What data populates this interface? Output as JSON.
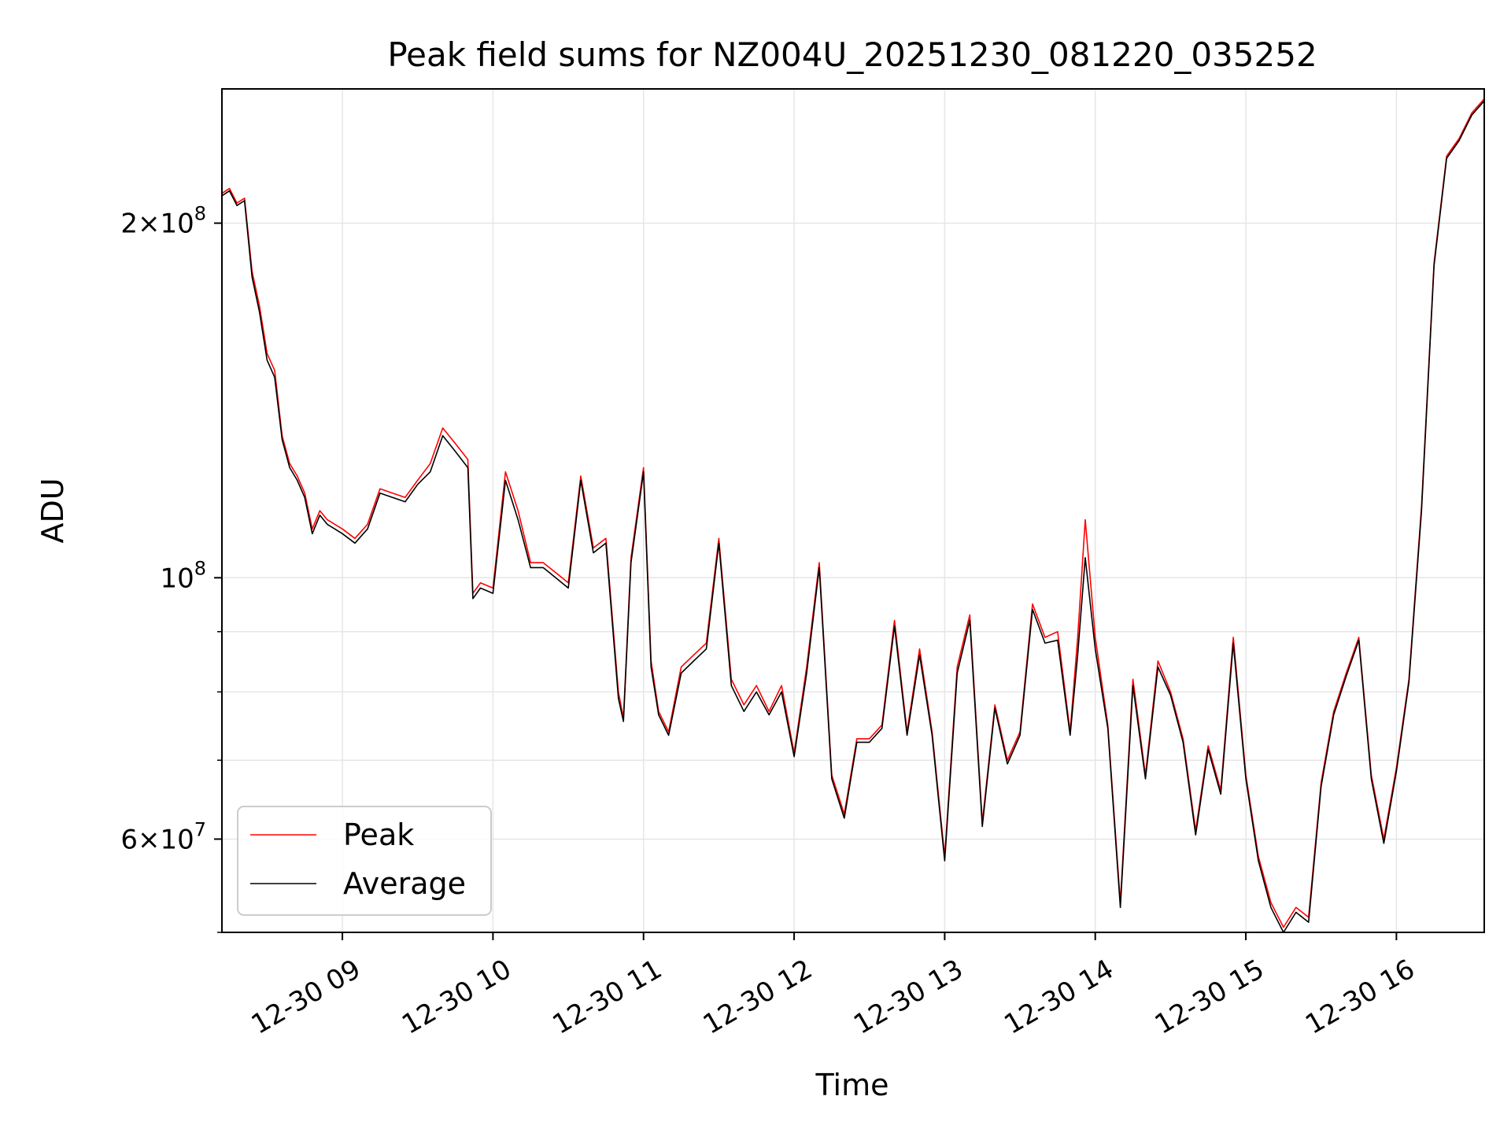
{
  "chart_data": {
    "type": "line",
    "title": "Peak field sums for NZ004U_20251230_081220_035252",
    "xlabel": "Time",
    "ylabel": "ADU",
    "yscale": "log",
    "grid": true,
    "legend_position": "lower-left",
    "xlim": [
      "2025-12-30 08:12",
      "2025-12-30 16:35"
    ],
    "ylim": [
      50000000,
      260000000
    ],
    "x_ticks": [
      {
        "value": "2025-12-30 09:00",
        "label": "12-30 09"
      },
      {
        "value": "2025-12-30 10:00",
        "label": "12-30 10"
      },
      {
        "value": "2025-12-30 11:00",
        "label": "12-30 11"
      },
      {
        "value": "2025-12-30 12:00",
        "label": "12-30 12"
      },
      {
        "value": "2025-12-30 13:00",
        "label": "12-30 13"
      },
      {
        "value": "2025-12-30 14:00",
        "label": "12-30 14"
      },
      {
        "value": "2025-12-30 15:00",
        "label": "12-30 15"
      },
      {
        "value": "2025-12-30 16:00",
        "label": "12-30 16"
      }
    ],
    "y_major_ticks": [
      {
        "value": 60000000,
        "mantissa": "6",
        "exponent": "7"
      },
      {
        "value": 100000000,
        "mantissa": "",
        "exponent": "8"
      },
      {
        "value": 200000000,
        "mantissa": "2",
        "exponent": "8"
      }
    ],
    "y_minor_ticks": [
      50000000,
      70000000,
      80000000,
      90000000
    ],
    "series": [
      {
        "name": "Peak",
        "color": "#ff0000",
        "x": [
          "08:12",
          "08:15",
          "08:18",
          "08:21",
          "08:24",
          "08:27",
          "08:30",
          "08:33",
          "08:36",
          "08:39",
          "08:42",
          "08:45",
          "08:48",
          "08:51",
          "08:54",
          "08:57",
          "09:00",
          "09:05",
          "09:10",
          "09:15",
          "09:20",
          "09:25",
          "09:30",
          "09:35",
          "09:40",
          "09:45",
          "09:50",
          "09:52",
          "09:55",
          "10:00",
          "10:05",
          "10:10",
          "10:15",
          "10:20",
          "10:25",
          "10:30",
          "10:35",
          "10:40",
          "10:45",
          "10:50",
          "10:52",
          "10:55",
          "11:00",
          "11:03",
          "11:06",
          "11:10",
          "11:15",
          "11:20",
          "11:25",
          "11:30",
          "11:35",
          "11:40",
          "11:45",
          "11:50",
          "11:55",
          "12:00",
          "12:05",
          "12:10",
          "12:15",
          "12:20",
          "12:25",
          "12:30",
          "12:35",
          "12:40",
          "12:45",
          "12:50",
          "12:55",
          "13:00",
          "13:05",
          "13:10",
          "13:15",
          "13:20",
          "13:25",
          "13:30",
          "13:35",
          "13:40",
          "13:45",
          "13:50",
          "13:53",
          "13:56",
          "14:00",
          "14:05",
          "14:10",
          "14:15",
          "14:20",
          "14:25",
          "14:30",
          "14:35",
          "14:40",
          "14:45",
          "14:50",
          "14:55",
          "15:00",
          "15:05",
          "15:10",
          "15:15",
          "15:20",
          "15:25",
          "15:30",
          "15:35",
          "15:40",
          "15:45",
          "15:50",
          "15:55",
          "16:00",
          "16:05",
          "16:10",
          "16:15",
          "16:20",
          "16:25",
          "16:30",
          "16:35"
        ],
        "values": [
          212000000,
          214000000,
          208000000,
          210000000,
          182000000,
          170000000,
          155000000,
          150000000,
          132000000,
          125000000,
          122000000,
          118000000,
          110000000,
          114000000,
          112000000,
          111000000,
          110000000,
          108000000,
          111000000,
          119000000,
          118000000,
          117000000,
          121000000,
          125000000,
          134000000,
          130000000,
          126000000,
          97000000,
          99000000,
          98000000,
          123000000,
          114000000,
          103000000,
          103000000,
          101000000,
          99000000,
          122000000,
          106000000,
          108000000,
          80000000,
          76000000,
          104000000,
          124000000,
          85000000,
          77000000,
          74000000,
          84000000,
          86000000,
          88000000,
          108000000,
          82000000,
          78000000,
          81000000,
          77000000,
          81000000,
          71000000,
          84000000,
          103000000,
          68000000,
          63000000,
          73000000,
          73000000,
          75000000,
          92000000,
          74000000,
          87000000,
          74000000,
          58000000,
          84000000,
          93000000,
          62000000,
          78000000,
          70000000,
          74000000,
          95000000,
          89000000,
          90000000,
          74000000,
          89000000,
          112000000,
          89000000,
          75000000,
          53000000,
          82000000,
          68000000,
          85000000,
          80000000,
          73000000,
          61000000,
          72000000,
          66000000,
          89000000,
          68000000,
          58000000,
          53000000,
          50500000,
          52500000,
          51500000,
          67000000,
          77000000,
          83000000,
          89000000,
          68000000,
          60000000,
          69000000,
          82000000,
          115000000,
          185000000,
          228000000,
          236000000,
          248000000,
          255000000
        ]
      },
      {
        "name": "Average",
        "color": "#000000",
        "x": [
          "08:12",
          "08:15",
          "08:18",
          "08:21",
          "08:24",
          "08:27",
          "08:30",
          "08:33",
          "08:36",
          "08:39",
          "08:42",
          "08:45",
          "08:48",
          "08:51",
          "08:54",
          "08:57",
          "09:00",
          "09:05",
          "09:10",
          "09:15",
          "09:20",
          "09:25",
          "09:30",
          "09:35",
          "09:40",
          "09:45",
          "09:50",
          "09:52",
          "09:55",
          "10:00",
          "10:05",
          "10:10",
          "10:15",
          "10:20",
          "10:25",
          "10:30",
          "10:35",
          "10:40",
          "10:45",
          "10:50",
          "10:52",
          "10:55",
          "11:00",
          "11:03",
          "11:06",
          "11:10",
          "11:15",
          "11:20",
          "11:25",
          "11:30",
          "11:35",
          "11:40",
          "11:45",
          "11:50",
          "11:55",
          "12:00",
          "12:05",
          "12:10",
          "12:15",
          "12:20",
          "12:25",
          "12:30",
          "12:35",
          "12:40",
          "12:45",
          "12:50",
          "12:55",
          "13:00",
          "13:05",
          "13:10",
          "13:15",
          "13:20",
          "13:25",
          "13:30",
          "13:35",
          "13:40",
          "13:45",
          "13:50",
          "13:53",
          "13:56",
          "14:00",
          "14:05",
          "14:10",
          "14:15",
          "14:20",
          "14:25",
          "14:30",
          "14:35",
          "14:40",
          "14:45",
          "14:50",
          "14:55",
          "15:00",
          "15:05",
          "15:10",
          "15:15",
          "15:20",
          "15:25",
          "15:30",
          "15:35",
          "15:40",
          "15:45",
          "15:50",
          "15:55",
          "16:00",
          "16:05",
          "16:10",
          "16:15",
          "16:20",
          "16:25",
          "16:30",
          "16:35"
        ],
        "values": [
          211000000,
          213000000,
          207000000,
          209000000,
          180000000,
          168000000,
          153000000,
          148000000,
          131000000,
          124000000,
          121000000,
          117000000,
          109000000,
          113000000,
          111000000,
          110000000,
          109000000,
          107000000,
          110000000,
          118000000,
          117000000,
          116000000,
          120000000,
          123000000,
          132000000,
          128000000,
          124000000,
          96000000,
          98000000,
          97000000,
          121000000,
          112000000,
          102000000,
          102000000,
          100000000,
          98000000,
          121000000,
          105000000,
          107000000,
          79000000,
          75500000,
          103000000,
          123000000,
          84000000,
          76500000,
          73500000,
          83000000,
          85000000,
          87000000,
          107000000,
          81000000,
          77000000,
          80000000,
          76500000,
          80000000,
          70500000,
          83000000,
          102000000,
          67500000,
          62500000,
          72500000,
          72500000,
          74500000,
          91000000,
          73500000,
          86000000,
          73500000,
          57500000,
          83000000,
          92000000,
          61500000,
          77500000,
          69500000,
          73500000,
          94000000,
          88000000,
          88500000,
          73500000,
          86000000,
          104000000,
          87000000,
          74500000,
          52500000,
          81000000,
          67500000,
          84000000,
          79500000,
          72500000,
          60500000,
          71500000,
          65500000,
          88000000,
          67500000,
          57500000,
          52500000,
          50000000,
          52000000,
          51000000,
          66500000,
          76500000,
          82500000,
          88500000,
          67500000,
          59500000,
          68500000,
          81500000,
          114000000,
          184000000,
          227000000,
          235000000,
          247000000,
          254000000
        ]
      }
    ]
  }
}
